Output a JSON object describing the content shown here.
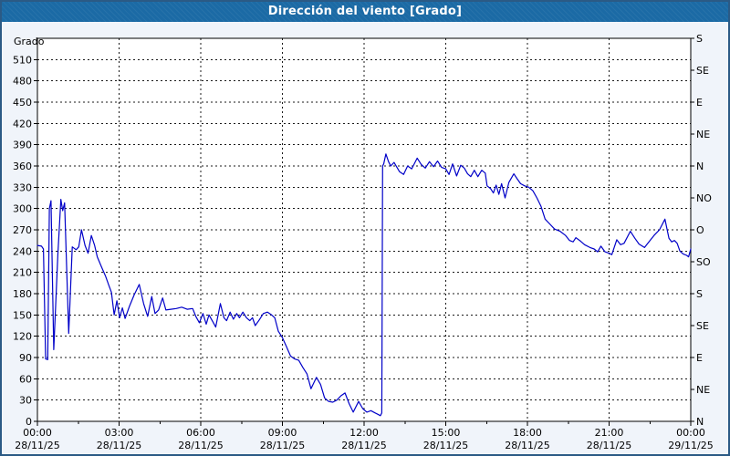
{
  "title": "Dirección del viento [Grado]",
  "colors": {
    "title_bg": "#1b6aa5",
    "title_text": "#ffffff",
    "page_bg": "#f0f4fa",
    "frame_border": "#2b5a85",
    "plot_bg": "#ffffff",
    "plot_border": "#000000",
    "grid": "#1a1a1a",
    "line": "#0000c8",
    "label_text": "#000000"
  },
  "chart_data": {
    "type": "line",
    "title": "Dirección del viento [Grado]",
    "ylabel_left": "Grado",
    "grid": "dashed",
    "xlim_hours": [
      0,
      24
    ],
    "ylim": [
      0,
      540
    ],
    "y_ticks_left": [
      0,
      30,
      60,
      90,
      120,
      150,
      180,
      210,
      240,
      270,
      300,
      330,
      360,
      390,
      420,
      450,
      480,
      510
    ],
    "y_ticks_right": [
      {
        "deg": 540,
        "label": "S"
      },
      {
        "deg": 495,
        "label": "SE"
      },
      {
        "deg": 450,
        "label": "E"
      },
      {
        "deg": 405,
        "label": "NE"
      },
      {
        "deg": 360,
        "label": "N"
      },
      {
        "deg": 315,
        "label": "NO"
      },
      {
        "deg": 270,
        "label": "O"
      },
      {
        "deg": 225,
        "label": "SO"
      },
      {
        "deg": 180,
        "label": "S"
      },
      {
        "deg": 135,
        "label": "SE"
      },
      {
        "deg": 90,
        "label": "E"
      },
      {
        "deg": 45,
        "label": "NE"
      },
      {
        "deg": 0,
        "label": "N"
      }
    ],
    "x_ticks": [
      {
        "hour": 0,
        "time": "00:00",
        "date": "28/11/25"
      },
      {
        "hour": 3,
        "time": "03:00",
        "date": "28/11/25"
      },
      {
        "hour": 6,
        "time": "06:00",
        "date": "28/11/25"
      },
      {
        "hour": 9,
        "time": "09:00",
        "date": "28/11/25"
      },
      {
        "hour": 12,
        "time": "12:00",
        "date": "28/11/25"
      },
      {
        "hour": 15,
        "time": "15:00",
        "date": "28/11/25"
      },
      {
        "hour": 18,
        "time": "18:00",
        "date": "28/11/25"
      },
      {
        "hour": 21,
        "time": "21:00",
        "date": "28/11/25"
      },
      {
        "hour": 24,
        "time": "00:00",
        "date": "29/11/25"
      }
    ],
    "x_minor_tick_step_hours": 1.5,
    "series": [
      {
        "name": "Dirección del viento",
        "color": "#0000c8",
        "points": [
          [
            0,
            248
          ],
          [
            0.15,
            247
          ],
          [
            0.22,
            243
          ],
          [
            0.3,
            88
          ],
          [
            0.38,
            87
          ],
          [
            0.44,
            300
          ],
          [
            0.5,
            311
          ],
          [
            0.6,
            101
          ],
          [
            0.75,
            235
          ],
          [
            0.86,
            313
          ],
          [
            0.93,
            297
          ],
          [
            1.0,
            308
          ],
          [
            1.08,
            210
          ],
          [
            1.15,
            124
          ],
          [
            1.28,
            246
          ],
          [
            1.42,
            242
          ],
          [
            1.52,
            246
          ],
          [
            1.62,
            270
          ],
          [
            1.75,
            248
          ],
          [
            1.86,
            237
          ],
          [
            1.98,
            262
          ],
          [
            2.1,
            248
          ],
          [
            2.2,
            232
          ],
          [
            2.35,
            218
          ],
          [
            2.5,
            205
          ],
          [
            2.62,
            192
          ],
          [
            2.72,
            182
          ],
          [
            2.82,
            150
          ],
          [
            2.92,
            170
          ],
          [
            3.02,
            146
          ],
          [
            3.12,
            160
          ],
          [
            3.22,
            145
          ],
          [
            3.38,
            162
          ],
          [
            3.55,
            178
          ],
          [
            3.74,
            193
          ],
          [
            3.9,
            166
          ],
          [
            4.05,
            148
          ],
          [
            4.2,
            176
          ],
          [
            4.32,
            152
          ],
          [
            4.45,
            157
          ],
          [
            4.6,
            174
          ],
          [
            4.72,
            157
          ],
          [
            4.9,
            158
          ],
          [
            5.1,
            159
          ],
          [
            5.3,
            161
          ],
          [
            5.5,
            158
          ],
          [
            5.7,
            159
          ],
          [
            5.82,
            148
          ],
          [
            5.95,
            139
          ],
          [
            6.08,
            152
          ],
          [
            6.2,
            137
          ],
          [
            6.3,
            150
          ],
          [
            6.45,
            140
          ],
          [
            6.55,
            133
          ],
          [
            6.72,
            166
          ],
          [
            6.85,
            146
          ],
          [
            6.95,
            142
          ],
          [
            7.08,
            154
          ],
          [
            7.2,
            144
          ],
          [
            7.32,
            152
          ],
          [
            7.42,
            146
          ],
          [
            7.55,
            154
          ],
          [
            7.68,
            146
          ],
          [
            7.8,
            142
          ],
          [
            7.9,
            146
          ],
          [
            8.0,
            135
          ],
          [
            8.15,
            143
          ],
          [
            8.3,
            152
          ],
          [
            8.45,
            154
          ],
          [
            8.6,
            150
          ],
          [
            8.72,
            146
          ],
          [
            8.85,
            127
          ],
          [
            9.0,
            118
          ],
          [
            9.15,
            105
          ],
          [
            9.3,
            92
          ],
          [
            9.45,
            88
          ],
          [
            9.6,
            86
          ],
          [
            9.75,
            76
          ],
          [
            9.9,
            67
          ],
          [
            10.05,
            46
          ],
          [
            10.25,
            62
          ],
          [
            10.4,
            52
          ],
          [
            10.55,
            33
          ],
          [
            10.7,
            28
          ],
          [
            10.85,
            27
          ],
          [
            11.0,
            30
          ],
          [
            11.15,
            36
          ],
          [
            11.3,
            40
          ],
          [
            11.45,
            25
          ],
          [
            11.6,
            13
          ],
          [
            11.8,
            28
          ],
          [
            11.95,
            18
          ],
          [
            12.1,
            13
          ],
          [
            12.25,
            15
          ],
          [
            12.4,
            12
          ],
          [
            12.5,
            10
          ],
          [
            12.6,
            8
          ],
          [
            12.65,
            12
          ],
          [
            12.68,
            360
          ],
          [
            12.72,
            363
          ],
          [
            12.8,
            377
          ],
          [
            12.9,
            366
          ],
          [
            12.98,
            360
          ],
          [
            13.1,
            365
          ],
          [
            13.3,
            352
          ],
          [
            13.45,
            348
          ],
          [
            13.6,
            360
          ],
          [
            13.75,
            356
          ],
          [
            13.95,
            371
          ],
          [
            14.1,
            362
          ],
          [
            14.25,
            357
          ],
          [
            14.4,
            366
          ],
          [
            14.55,
            359
          ],
          [
            14.7,
            367
          ],
          [
            14.85,
            358
          ],
          [
            15.0,
            356
          ],
          [
            15.12,
            348
          ],
          [
            15.25,
            363
          ],
          [
            15.4,
            346
          ],
          [
            15.55,
            361
          ],
          [
            15.68,
            357
          ],
          [
            15.8,
            349
          ],
          [
            15.92,
            345
          ],
          [
            16.05,
            354
          ],
          [
            16.18,
            345
          ],
          [
            16.32,
            354
          ],
          [
            16.45,
            350
          ],
          [
            16.52,
            332
          ],
          [
            16.65,
            328
          ],
          [
            16.75,
            322
          ],
          [
            16.85,
            333
          ],
          [
            16.95,
            320
          ],
          [
            17.05,
            335
          ],
          [
            17.18,
            315
          ],
          [
            17.32,
            337
          ],
          [
            17.5,
            349
          ],
          [
            17.62,
            342
          ],
          [
            17.75,
            335
          ],
          [
            17.9,
            332
          ],
          [
            18.05,
            330
          ],
          [
            18.2,
            325
          ],
          [
            18.35,
            315
          ],
          [
            18.5,
            303
          ],
          [
            18.65,
            285
          ],
          [
            18.8,
            279
          ],
          [
            19.0,
            271
          ],
          [
            19.2,
            268
          ],
          [
            19.4,
            262
          ],
          [
            19.55,
            255
          ],
          [
            19.68,
            253
          ],
          [
            19.78,
            259
          ],
          [
            19.95,
            254
          ],
          [
            20.1,
            249
          ],
          [
            20.3,
            245
          ],
          [
            20.45,
            243
          ],
          [
            20.58,
            239
          ],
          [
            20.7,
            247
          ],
          [
            20.85,
            239
          ],
          [
            21.0,
            237
          ],
          [
            21.1,
            235
          ],
          [
            21.28,
            256
          ],
          [
            21.42,
            249
          ],
          [
            21.55,
            251
          ],
          [
            21.78,
            268
          ],
          [
            21.95,
            258
          ],
          [
            22.1,
            250
          ],
          [
            22.3,
            245
          ],
          [
            22.5,
            255
          ],
          [
            22.65,
            262
          ],
          [
            22.85,
            270
          ],
          [
            23.05,
            285
          ],
          [
            23.2,
            258
          ],
          [
            23.3,
            253
          ],
          [
            23.4,
            255
          ],
          [
            23.5,
            251
          ],
          [
            23.6,
            240
          ],
          [
            23.72,
            236
          ],
          [
            23.85,
            234
          ],
          [
            23.92,
            232
          ],
          [
            24,
            243
          ]
        ]
      }
    ]
  }
}
